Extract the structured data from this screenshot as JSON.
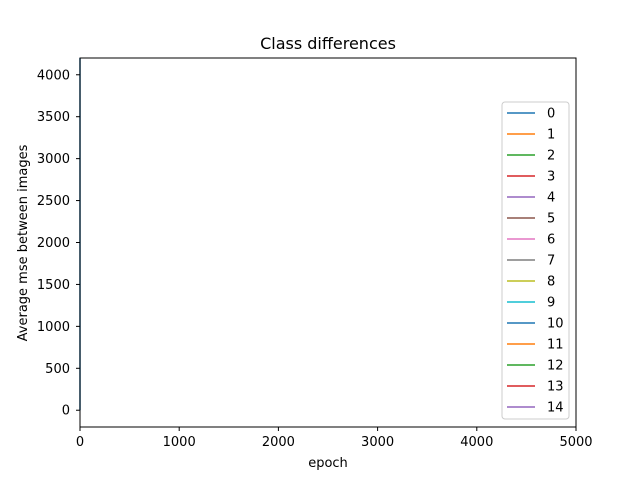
{
  "chart_data": {
    "type": "line",
    "title": "Class differences",
    "xlabel": "epoch",
    "ylabel": "Average mse between images",
    "xlim": [
      0,
      5000
    ],
    "ylim": [
      -200,
      4200
    ],
    "xticks": [
      0,
      1000,
      2000,
      3000,
      4000,
      5000
    ],
    "yticks": [
      0,
      500,
      1000,
      1500,
      2000,
      2500,
      3000,
      3500,
      4000
    ],
    "grid": false,
    "legend_position": "right",
    "series": [
      {
        "name": "0",
        "color": "#1f77b4",
        "x": [
          0,
          0
        ],
        "y": [
          0,
          4200
        ]
      },
      {
        "name": "1",
        "color": "#ff7f0e",
        "x": [],
        "y": []
      },
      {
        "name": "2",
        "color": "#2ca02c",
        "x": [],
        "y": []
      },
      {
        "name": "3",
        "color": "#d62728",
        "x": [],
        "y": []
      },
      {
        "name": "4",
        "color": "#9467bd",
        "x": [],
        "y": []
      },
      {
        "name": "5",
        "color": "#8c564b",
        "x": [],
        "y": []
      },
      {
        "name": "6",
        "color": "#e377c2",
        "x": [],
        "y": []
      },
      {
        "name": "7",
        "color": "#7f7f7f",
        "x": [],
        "y": []
      },
      {
        "name": "8",
        "color": "#bcbd22",
        "x": [],
        "y": []
      },
      {
        "name": "9",
        "color": "#17becf",
        "x": [],
        "y": []
      },
      {
        "name": "10",
        "color": "#1f77b4",
        "x": [],
        "y": []
      },
      {
        "name": "11",
        "color": "#ff7f0e",
        "x": [],
        "y": []
      },
      {
        "name": "12",
        "color": "#2ca02c",
        "x": [],
        "y": []
      },
      {
        "name": "13",
        "color": "#d62728",
        "x": [],
        "y": []
      },
      {
        "name": "14",
        "color": "#9467bd",
        "x": [],
        "y": []
      }
    ]
  }
}
